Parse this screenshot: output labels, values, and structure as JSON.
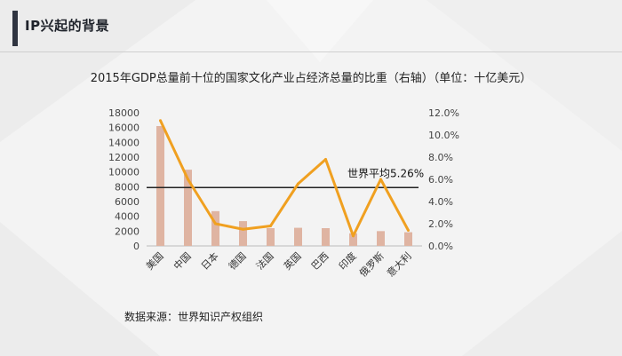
{
  "header": {
    "title": "IP兴起的背景"
  },
  "footer": {
    "source": "数据来源：世界知识产权组织"
  },
  "chart_data": {
    "type": "bar+line",
    "title": "2015年GDP总量前十位的国家文化产业占经济总量的比重（右轴）（单位：十亿美元）",
    "categories": [
      "美国",
      "中国",
      "日本",
      "德国",
      "法国",
      "英国",
      "巴西",
      "印度",
      "俄罗斯",
      "意大利"
    ],
    "series": [
      {
        "type": "bar",
        "axis": "left",
        "values": [
          16200,
          10300,
          4700,
          3350,
          2400,
          2450,
          2400,
          1700,
          2000,
          1850
        ]
      },
      {
        "type": "line",
        "axis": "right",
        "values": [
          11.3,
          6.0,
          2.0,
          1.5,
          1.8,
          5.6,
          7.8,
          0.9,
          6.0,
          1.4
        ]
      }
    ],
    "left_axis": {
      "ylim": [
        0,
        18000
      ],
      "ticks": [
        "0",
        "2000",
        "4000",
        "6000",
        "8000",
        "10000",
        "12000",
        "14000",
        "16000",
        "18000"
      ]
    },
    "right_axis": {
      "ylim": [
        0,
        12
      ],
      "ticks": [
        "0.0%",
        "2.0%",
        "4.0%",
        "6.0%",
        "8.0%",
        "10.0%",
        "12.0%"
      ]
    },
    "reference_line": {
      "value": 5.26,
      "axis": "right",
      "label": "世界平均5.26%"
    },
    "colors": {
      "bar": "#dfb4a2",
      "line": "#f0a020",
      "reference": "#222222"
    }
  }
}
